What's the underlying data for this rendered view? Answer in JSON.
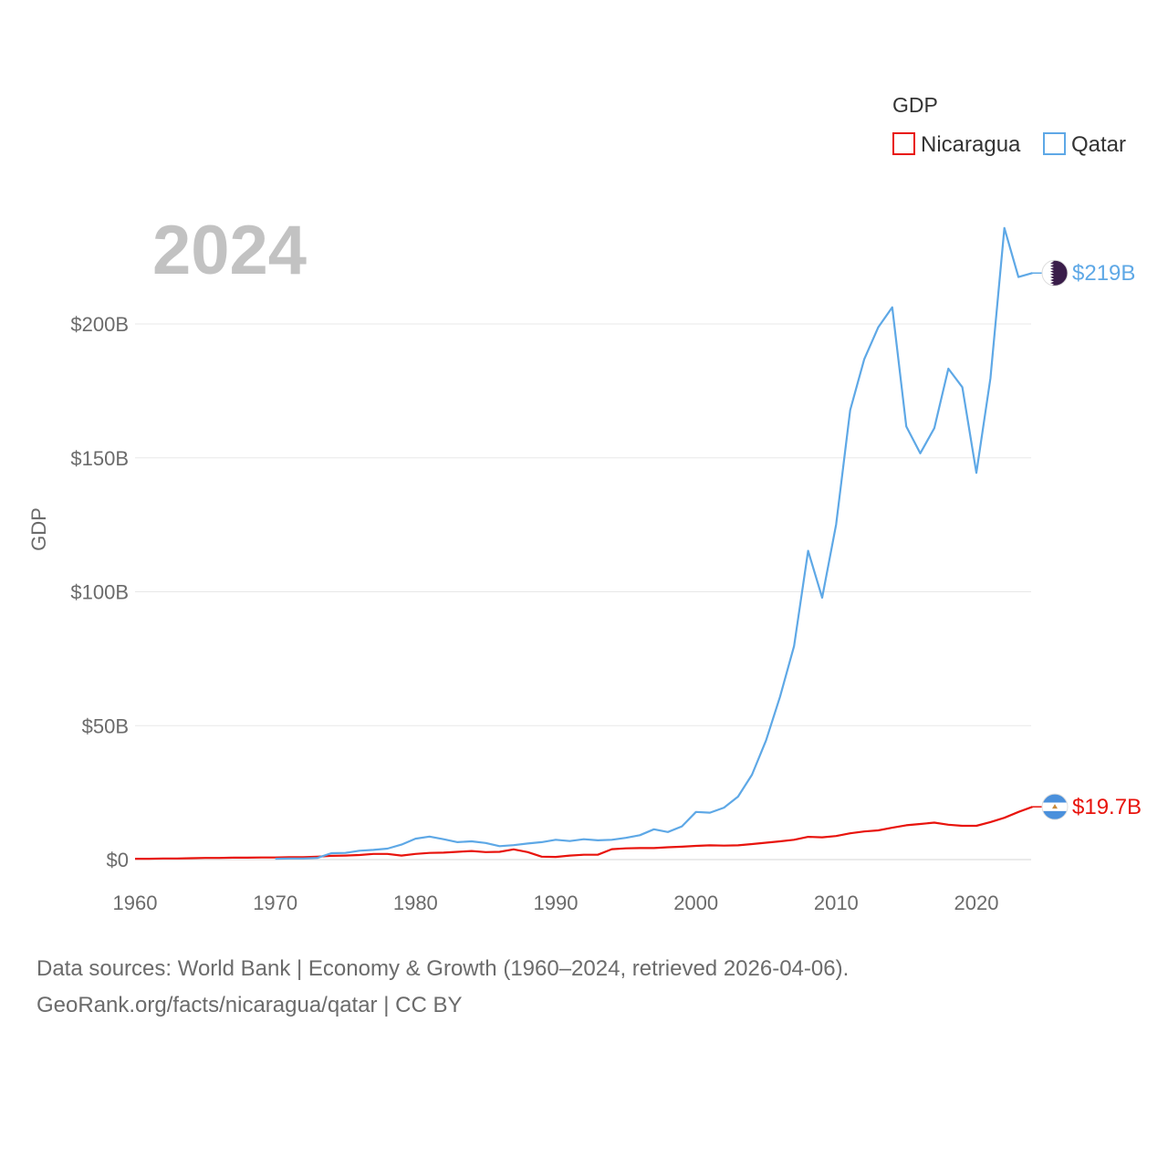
{
  "chart_data": {
    "type": "line",
    "title": "GDP",
    "year_label": "2024",
    "ylabel": "GDP",
    "xlabel": "",
    "xlim": [
      1960,
      2024
    ],
    "ylim": [
      0,
      236
    ],
    "x_ticks": [
      1960,
      1970,
      1980,
      1990,
      2000,
      2010,
      2020
    ],
    "y_ticks": [
      0,
      50,
      100,
      150,
      200
    ],
    "y_tick_labels": [
      "$0",
      "$50B",
      "$100B",
      "$150B",
      "$200B"
    ],
    "units": "billions of US dollars",
    "grid": true,
    "legend": {
      "title": "GDP",
      "position": "top-right"
    },
    "series": [
      {
        "name": "Nicaragua",
        "color": "#e8130c",
        "end_label": "$19.7B",
        "x": [
          1960,
          1961,
          1962,
          1963,
          1964,
          1965,
          1966,
          1967,
          1968,
          1969,
          1970,
          1971,
          1972,
          1973,
          1974,
          1975,
          1976,
          1977,
          1978,
          1979,
          1980,
          1981,
          1982,
          1983,
          1984,
          1985,
          1986,
          1987,
          1988,
          1989,
          1990,
          1991,
          1992,
          1993,
          1994,
          1995,
          1996,
          1997,
          1998,
          1999,
          2000,
          2001,
          2002,
          2003,
          2004,
          2005,
          2006,
          2007,
          2008,
          2009,
          2010,
          2011,
          2012,
          2013,
          2014,
          2015,
          2016,
          2017,
          2018,
          2019,
          2020,
          2021,
          2022,
          2023,
          2024
        ],
        "values": [
          0.3,
          0.3,
          0.4,
          0.4,
          0.5,
          0.6,
          0.6,
          0.7,
          0.7,
          0.8,
          0.8,
          0.9,
          0.9,
          1.1,
          1.4,
          1.5,
          1.7,
          2.1,
          2.1,
          1.5,
          2.1,
          2.5,
          2.6,
          2.9,
          3.2,
          2.8,
          2.9,
          3.8,
          2.8,
          1.1,
          1.0,
          1.5,
          1.8,
          1.8,
          3.9,
          4.2,
          4.3,
          4.3,
          4.6,
          4.8,
          5.1,
          5.3,
          5.2,
          5.3,
          5.8,
          6.3,
          6.8,
          7.4,
          8.5,
          8.3,
          8.8,
          9.8,
          10.5,
          10.9,
          11.9,
          12.8,
          13.3,
          13.8,
          13.0,
          12.6,
          12.6,
          14.0,
          15.6,
          17.8,
          19.7
        ]
      },
      {
        "name": "Qatar",
        "color": "#5ea8e6",
        "end_label": "$219B",
        "x": [
          1970,
          1971,
          1972,
          1973,
          1974,
          1975,
          1976,
          1977,
          1978,
          1979,
          1980,
          1981,
          1982,
          1983,
          1984,
          1985,
          1986,
          1987,
          1988,
          1989,
          1990,
          1991,
          1992,
          1993,
          1994,
          1995,
          1996,
          1997,
          1998,
          1999,
          2000,
          2001,
          2002,
          2003,
          2004,
          2005,
          2006,
          2007,
          2008,
          2009,
          2010,
          2011,
          2012,
          2013,
          2014,
          2015,
          2016,
          2017,
          2018,
          2019,
          2020,
          2021,
          2022,
          2023,
          2024
        ],
        "values": [
          0.3,
          0.4,
          0.4,
          0.6,
          2.4,
          2.5,
          3.3,
          3.6,
          4.1,
          5.6,
          7.8,
          8.6,
          7.6,
          6.5,
          6.8,
          6.2,
          5.0,
          5.4,
          6.0,
          6.5,
          7.4,
          6.9,
          7.6,
          7.2,
          7.4,
          8.1,
          9.1,
          11.3,
          10.3,
          12.4,
          17.8,
          17.5,
          19.4,
          23.5,
          31.7,
          44.5,
          60.9,
          79.7,
          115.3,
          97.8,
          125.1,
          167.8,
          186.8,
          198.7,
          206.2,
          161.7,
          151.7,
          161.1,
          183.3,
          176.4,
          144.4,
          179.7,
          235.8,
          217.5,
          219.0
        ]
      }
    ]
  },
  "source": {
    "line1": "Data sources: World Bank | Economy & Growth (1960–2024, retrieved 2026-04-06).",
    "line2": "GeoRank.org/facts/nicaragua/qatar | CC BY"
  }
}
